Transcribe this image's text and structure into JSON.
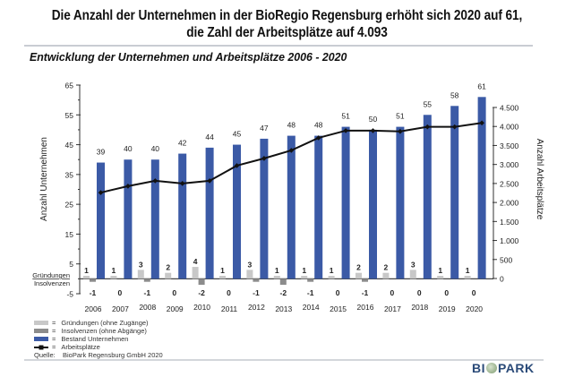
{
  "header": {
    "title_line1": "Die Anzahl der Unternehmen in der BioRegio Regensburg erhöht sich 2020 auf 61,",
    "title_line2": "die Zahl der Arbeitsplätze auf 4.093",
    "subtitle": "Entwicklung der Unternehmen und Arbeitsplätze 2006 - 2020"
  },
  "colors": {
    "bestand": "#3b5aa6",
    "gruendungen": "#c8c8c8",
    "insolvenzen": "#8c8c8c",
    "arbeitsplaetze": "#111111"
  },
  "chart_data": {
    "type": "bar",
    "title": "Entwicklung der Unternehmen und Arbeitsplätze 2006 - 2020",
    "categories": [
      "2006",
      "2007",
      "2008",
      "2009",
      "2010",
      "2011",
      "2012",
      "2013",
      "2014",
      "2015",
      "2016",
      "2017",
      "2018",
      "2019",
      "2020"
    ],
    "series": [
      {
        "name": "Gründungen (ohne Zugänge)",
        "type": "bar",
        "axis": "left",
        "values": [
          1,
          1,
          3,
          2,
          4,
          1,
          3,
          1,
          1,
          1,
          2,
          2,
          3,
          1,
          1
        ]
      },
      {
        "name": "Insolvenzen (ohne Abgänge)",
        "type": "bar",
        "axis": "left",
        "values": [
          -1,
          0,
          -1,
          0,
          -2,
          0,
          -1,
          -2,
          -1,
          0,
          -1,
          0,
          0,
          0,
          0
        ]
      },
      {
        "name": "Bestand Unternehmen",
        "type": "bar",
        "axis": "left",
        "values": [
          39,
          40,
          40,
          42,
          44,
          45,
          47,
          48,
          48,
          51,
          50,
          51,
          55,
          58,
          61
        ]
      },
      {
        "name": "Arbeitsplätze",
        "type": "line",
        "axis": "right",
        "values": [
          2260,
          2430,
          2570,
          2500,
          2570,
          2970,
          3160,
          3370,
          3700,
          3890,
          3890,
          3870,
          3990,
          3990,
          4093
        ]
      }
    ],
    "ylabel": "Anzahl Unternehmen",
    "y2label": "Anzahl Arbeitsplätze",
    "ylim": [
      -5,
      65
    ],
    "yticks": [
      "65",
      "55",
      "45",
      "35",
      "25",
      "15",
      "5",
      "-5"
    ],
    "ytick_values": [
      65,
      55,
      45,
      35,
      25,
      15,
      5,
      -5
    ],
    "y2lim": [
      0,
      4500
    ],
    "y2ticks": [
      "4.500",
      "4.000",
      "3.500",
      "3.000",
      "2.500",
      "2.000",
      "1.500",
      "1.000",
      "500",
      "0"
    ],
    "y2tick_values": [
      4500,
      4000,
      3500,
      3000,
      2500,
      2000,
      1500,
      1000,
      500,
      0
    ],
    "axis_labels_left": {
      "gruendungen": "Gründungen",
      "insolvenzen": "Insolvenzen"
    },
    "grid": false,
    "legend": "bottom-left"
  },
  "legend": {
    "items": [
      {
        "eq": "=",
        "label": "Gründungen (ohne Zugänge)"
      },
      {
        "eq": "=",
        "label": "Insolvenzen (ohne Abgänge)"
      },
      {
        "eq": "=",
        "label": "Bestand Unternehmen"
      },
      {
        "eq": "=",
        "label": "Arbeitsplätze"
      }
    ],
    "source_label": "Quelle:",
    "source_value": "BioPark Regensburg GmbH 2020"
  },
  "logo": {
    "left": "BI",
    "right": "PARK"
  }
}
